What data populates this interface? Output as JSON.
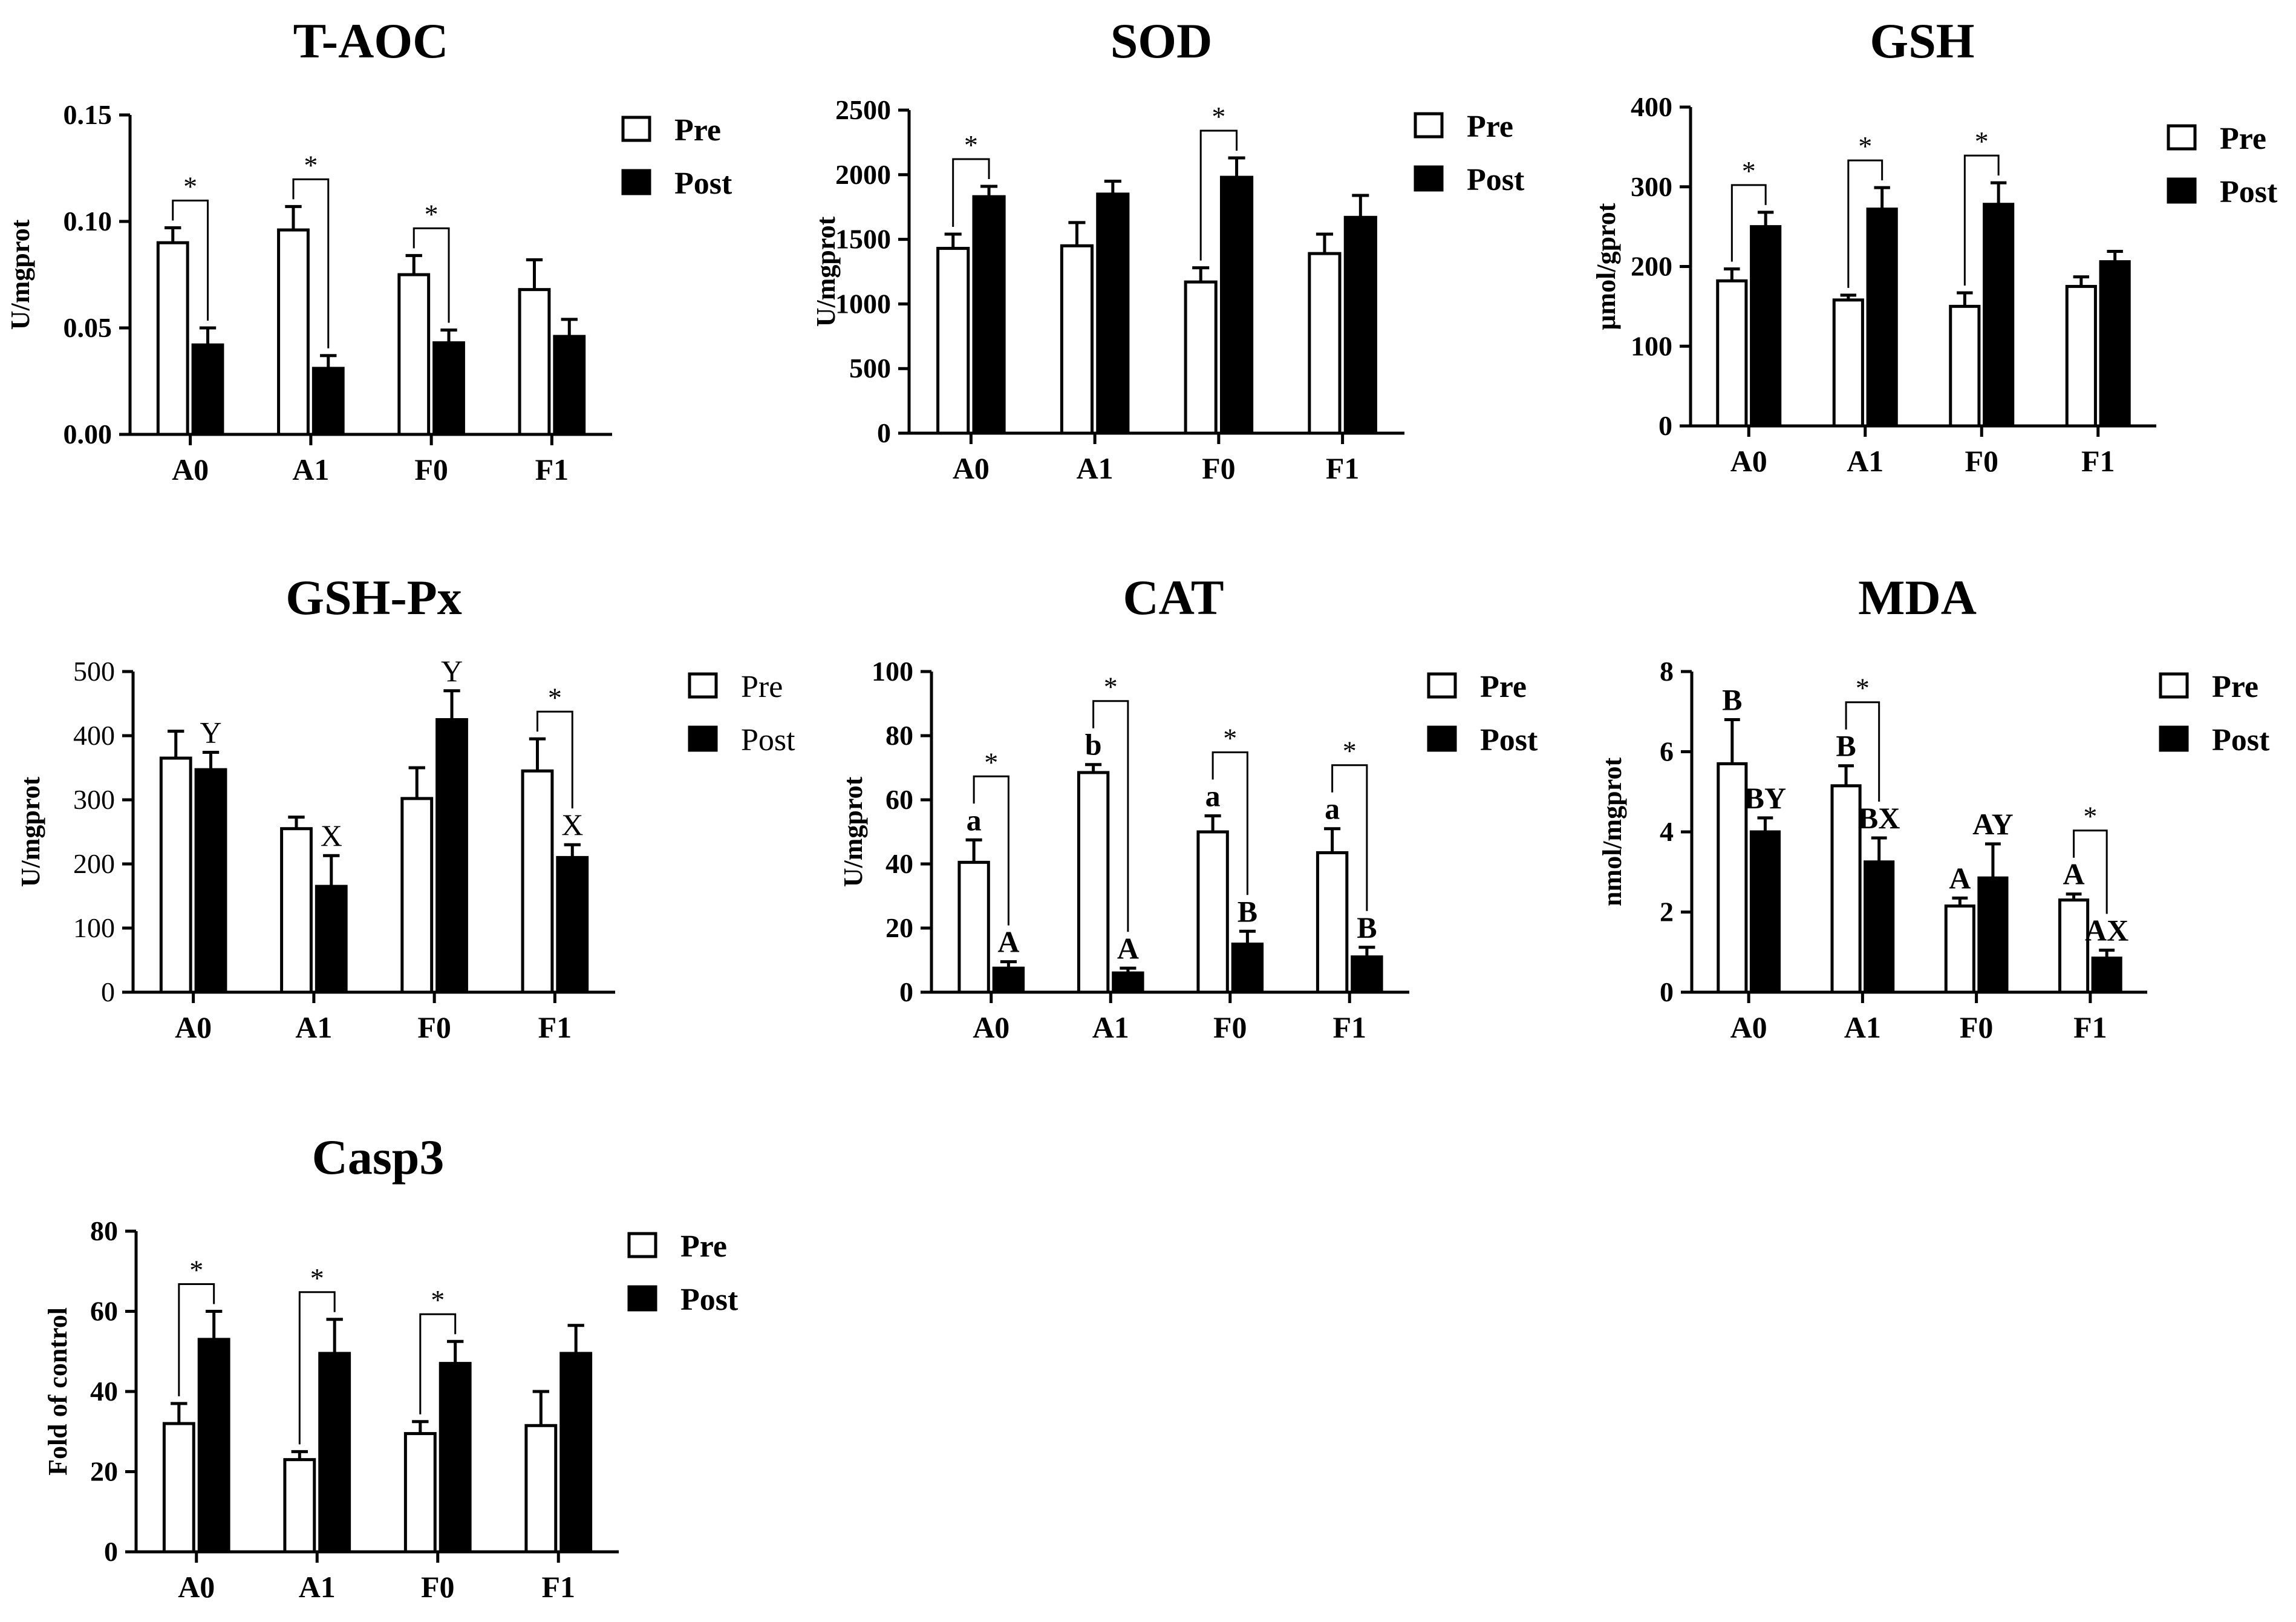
{
  "chart_data": [
    {
      "type": "bar",
      "title": "T-AOC",
      "ylabel": "U/mgprot",
      "xlabel": "",
      "ylim": [
        0,
        0.15
      ],
      "yticks": [
        "0.00",
        "0.05",
        "0.10",
        "0.15"
      ],
      "categories": [
        "A0",
        "A1",
        "F0",
        "F1"
      ],
      "legend": [
        "Pre",
        "Post"
      ],
      "series": [
        {
          "name": "Pre",
          "values": [
            0.09,
            0.096,
            0.075,
            0.068
          ],
          "errors": [
            0.007,
            0.011,
            0.009,
            0.014
          ],
          "letters": [
            "",
            "",
            "",
            ""
          ]
        },
        {
          "name": "Post",
          "values": [
            0.042,
            0.031,
            0.043,
            0.046
          ],
          "errors": [
            0.008,
            0.006,
            0.006,
            0.008
          ],
          "letters": [
            "",
            "",
            "",
            ""
          ]
        }
      ],
      "significance": [
        {
          "category": "A0",
          "label": "*"
        },
        {
          "category": "A1",
          "label": "*"
        },
        {
          "category": "F0",
          "label": "*"
        }
      ]
    },
    {
      "type": "bar",
      "title": "SOD",
      "ylabel": "U/mgprot",
      "xlabel": "",
      "ylim": [
        0,
        2500
      ],
      "yticks": [
        "0",
        "500",
        "1000",
        "1500",
        "2000",
        "2500"
      ],
      "categories": [
        "A0",
        "A1",
        "F0",
        "F1"
      ],
      "legend": [
        "Pre",
        "Post"
      ],
      "series": [
        {
          "name": "Pre",
          "values": [
            1430,
            1450,
            1170,
            1390
          ],
          "errors": [
            110,
            180,
            110,
            150
          ],
          "letters": [
            "",
            "",
            "",
            ""
          ]
        },
        {
          "name": "Post",
          "values": [
            1830,
            1850,
            1980,
            1670
          ],
          "errors": [
            80,
            100,
            150,
            170
          ],
          "letters": [
            "",
            "",
            "",
            ""
          ]
        }
      ],
      "significance": [
        {
          "category": "A0",
          "label": "*"
        },
        {
          "category": "F0",
          "label": "*"
        }
      ]
    },
    {
      "type": "bar",
      "title": "GSH",
      "ylabel": "μmol/gprot",
      "xlabel": "",
      "ylim": [
        0,
        400
      ],
      "yticks": [
        "0",
        "100",
        "200",
        "300",
        "400"
      ],
      "categories": [
        "A0",
        "A1",
        "F0",
        "F1"
      ],
      "legend": [
        "Pre",
        "Post"
      ],
      "series": [
        {
          "name": "Pre",
          "values": [
            182,
            158,
            150,
            175
          ],
          "errors": [
            15,
            6,
            17,
            12
          ],
          "letters": [
            "",
            "",
            "",
            ""
          ]
        },
        {
          "name": "Post",
          "values": [
            250,
            272,
            278,
            206
          ],
          "errors": [
            18,
            27,
            27,
            13
          ],
          "letters": [
            "",
            "",
            "",
            ""
          ]
        }
      ],
      "significance": [
        {
          "category": "A0",
          "label": "*"
        },
        {
          "category": "A1",
          "label": "*"
        },
        {
          "category": "F0",
          "label": "*"
        }
      ]
    },
    {
      "type": "bar",
      "title": "GSH-Px",
      "ylabel": "U/mgprot",
      "xlabel": "",
      "ylim": [
        0,
        500
      ],
      "yticks": [
        "0",
        "100",
        "200",
        "300",
        "400",
        "500"
      ],
      "categories": [
        "A0",
        "A1",
        "F0",
        "F1"
      ],
      "legend": [
        "Pre",
        "Post"
      ],
      "series": [
        {
          "name": "Pre",
          "values": [
            365,
            255,
            302,
            345
          ],
          "errors": [
            42,
            18,
            48,
            50
          ],
          "letters": [
            "",
            "",
            "",
            ""
          ]
        },
        {
          "name": "Post",
          "values": [
            347,
            165,
            425,
            210
          ],
          "errors": [
            27,
            48,
            45,
            20
          ],
          "letters": [
            "Y",
            "X",
            "Y",
            "X"
          ]
        }
      ],
      "significance": [
        {
          "category": "F1",
          "label": "*"
        }
      ]
    },
    {
      "type": "bar",
      "title": "CAT",
      "ylabel": "U/mgprot",
      "xlabel": "",
      "ylim": [
        0,
        100
      ],
      "yticks": [
        "0",
        "20",
        "40",
        "60",
        "80",
        "100"
      ],
      "categories": [
        "A0",
        "A1",
        "F0",
        "F1"
      ],
      "legend": [
        "Pre",
        "Post"
      ],
      "series": [
        {
          "name": "Pre",
          "values": [
            40.5,
            68.5,
            50,
            43.5
          ],
          "errors": [
            7,
            2.5,
            5,
            7.5
          ],
          "letters": [
            "a",
            "b",
            "a",
            "a"
          ]
        },
        {
          "name": "Post",
          "values": [
            7.5,
            6,
            15,
            11
          ],
          "errors": [
            2,
            1.5,
            4,
            3
          ],
          "letters": [
            "A",
            "A",
            "B",
            "B"
          ]
        }
      ],
      "significance": [
        {
          "category": "A0",
          "label": "*"
        },
        {
          "category": "A1",
          "label": "*"
        },
        {
          "category": "F0",
          "label": "*"
        },
        {
          "category": "F1",
          "label": "*"
        }
      ]
    },
    {
      "type": "bar",
      "title": "MDA",
      "ylabel": "nmol/mgprot",
      "xlabel": "",
      "ylim": [
        0,
        8
      ],
      "yticks": [
        "0",
        "2",
        "4",
        "6",
        "8"
      ],
      "categories": [
        "A0",
        "A1",
        "F0",
        "F1"
      ],
      "legend": [
        "Pre",
        "Post"
      ],
      "series": [
        {
          "name": "Pre",
          "values": [
            5.7,
            5.15,
            2.15,
            2.3
          ],
          "errors": [
            1.1,
            0.5,
            0.2,
            0.15
          ],
          "letters": [
            "B",
            "B",
            "A",
            "A"
          ]
        },
        {
          "name": "Post",
          "values": [
            4.0,
            3.25,
            2.85,
            0.85
          ],
          "errors": [
            0.35,
            0.6,
            0.85,
            0.2
          ],
          "letters": [
            "BY",
            "BX",
            "AY",
            "AX"
          ]
        }
      ],
      "significance": [
        {
          "category": "A1",
          "label": "*"
        },
        {
          "category": "F1",
          "label": "*"
        }
      ]
    },
    {
      "type": "bar",
      "title": "Casp3",
      "ylabel": "Fold of control",
      "xlabel": "",
      "ylim": [
        0,
        80
      ],
      "yticks": [
        "0",
        "20",
        "40",
        "60",
        "80"
      ],
      "categories": [
        "A0",
        "A1",
        "F0",
        "F1"
      ],
      "legend": [
        "Pre",
        "Post"
      ],
      "series": [
        {
          "name": "Pre",
          "values": [
            32,
            23,
            29.5,
            31.5
          ],
          "errors": [
            5,
            2,
            3,
            8.5
          ],
          "letters": [
            "",
            "",
            "",
            ""
          ]
        },
        {
          "name": "Post",
          "values": [
            53,
            49.5,
            47,
            49.5
          ],
          "errors": [
            7,
            8.5,
            5.5,
            7
          ],
          "letters": [
            "",
            "",
            "",
            ""
          ]
        }
      ],
      "significance": [
        {
          "category": "A0",
          "label": "*"
        },
        {
          "category": "A1",
          "label": "*"
        },
        {
          "category": "F0",
          "label": "*"
        }
      ]
    }
  ]
}
